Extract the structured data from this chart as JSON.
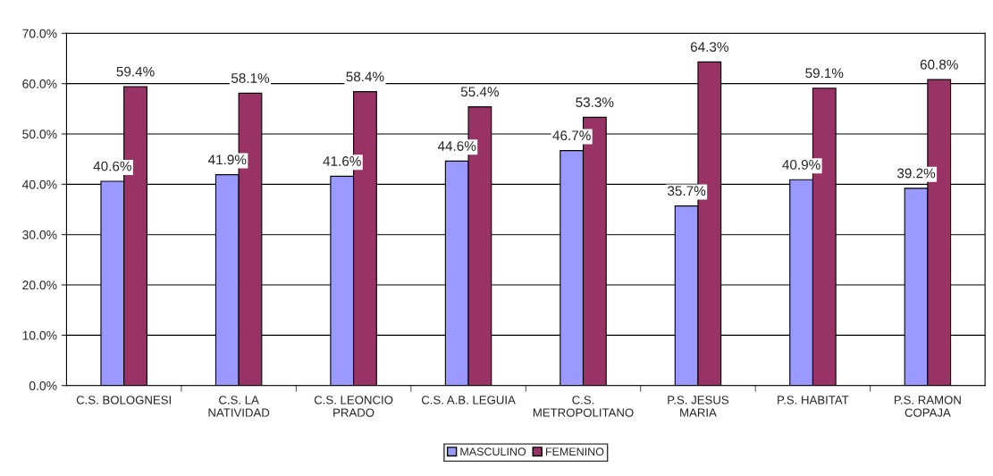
{
  "chart_data": {
    "type": "bar",
    "categories": [
      "C.S. BOLOGNESI",
      "C.S. LA\nNATIVIDAD",
      "C.S. LEONCIO\nPRADO",
      "C.S. A.B. LEGUIA",
      "C.S.\nMETROPOLITANO",
      "P.S. JESUS\nMARIA",
      "P.S. HABITAT",
      "P.S. RAMON\nCOPAJA"
    ],
    "series": [
      {
        "name": "MASCULINO",
        "color": "#9999ff",
        "values": [
          40.6,
          41.9,
          41.6,
          44.6,
          46.7,
          35.7,
          40.9,
          39.2
        ],
        "value_labels": [
          "40.6%",
          "41.9%",
          "41.6%",
          "44.6%",
          "46.7%",
          "35.7%",
          "40.9%",
          "39.2%"
        ]
      },
      {
        "name": "FEMENINO",
        "color": "#993366",
        "values": [
          59.4,
          58.1,
          58.4,
          55.4,
          53.3,
          64.3,
          59.1,
          60.8
        ],
        "value_labels": [
          "59.4%",
          "58.1%",
          "58.4%",
          "55.4%",
          "53.3%",
          "64.3%",
          "59.1%",
          "60.8%"
        ]
      }
    ],
    "ylim": [
      0,
      70
    ],
    "yticks": [
      {
        "value": 0,
        "label": "0.0%"
      },
      {
        "value": 10,
        "label": "10.0%"
      },
      {
        "value": 20,
        "label": "20.0%"
      },
      {
        "value": 30,
        "label": "30.0%"
      },
      {
        "value": 40,
        "label": "40.0%"
      },
      {
        "value": 50,
        "label": "50.0%"
      },
      {
        "value": 60,
        "label": "60.0%"
      },
      {
        "value": 70,
        "label": "70.0%"
      }
    ],
    "grid": "y",
    "legend": "bottom"
  }
}
